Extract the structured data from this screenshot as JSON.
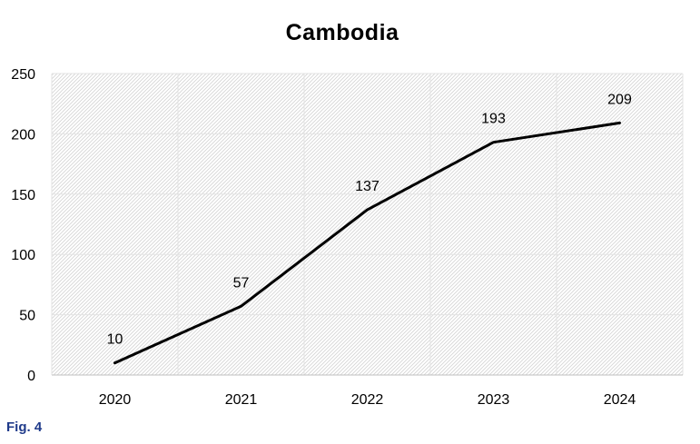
{
  "chart_data": {
    "type": "line",
    "title": "Cambodia",
    "xlabel": "",
    "ylabel": "",
    "categories": [
      "2020",
      "2021",
      "2022",
      "2023",
      "2024"
    ],
    "series": [
      {
        "values": [
          10,
          57,
          137,
          193,
          209
        ]
      }
    ],
    "data_labels": [
      "10",
      "57",
      "137",
      "193",
      "209"
    ],
    "ylim": [
      0,
      250
    ],
    "yticks": [
      0,
      50,
      100,
      150,
      200,
      250
    ],
    "ytick_labels": [
      "0",
      "50",
      "100",
      "150",
      "200",
      "250"
    ],
    "grid": true,
    "plot_background": "hatched",
    "legend": "none",
    "line_color": "#000000"
  },
  "caption": "Fig. 4",
  "caption_color": "#1f3a8a"
}
